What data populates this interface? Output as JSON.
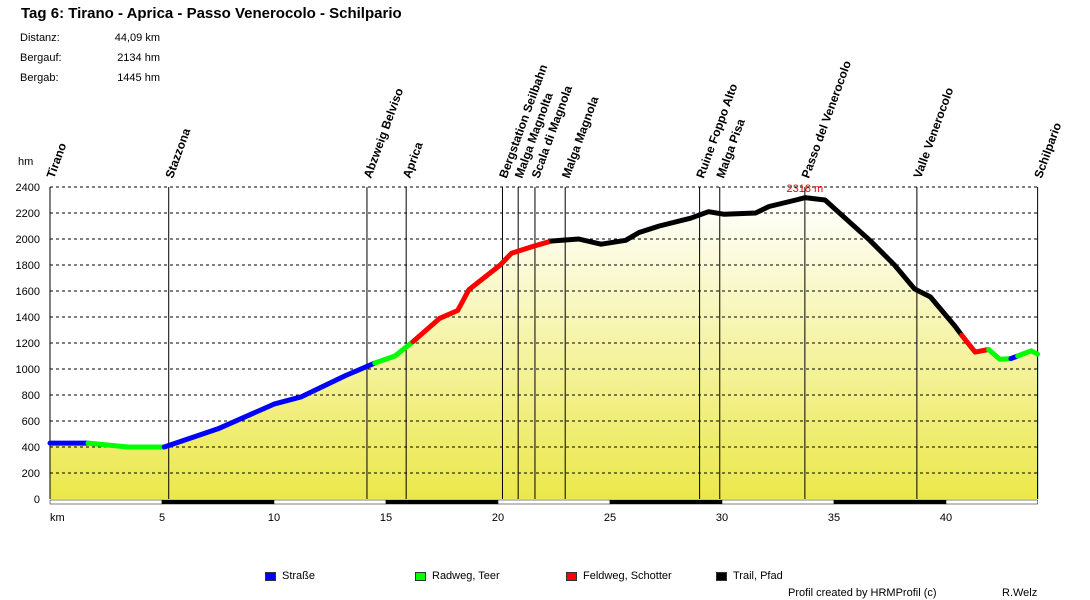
{
  "title": "Tag 6: Tirano - Aprica - Passo Venerocolo - Schilpario",
  "stats": [
    {
      "label": "Distanz:",
      "value": "44,09 km"
    },
    {
      "label": "Bergauf:",
      "value": "2134 hm"
    },
    {
      "label": "Bergab:",
      "value": "1445 hm"
    }
  ],
  "legend": [
    {
      "label": "Straße",
      "color": "#0000ff"
    },
    {
      "label": "Radweg, Teer",
      "color": "#00ff00"
    },
    {
      "label": "Feldweg, Schotter",
      "color": "#ff0000"
    },
    {
      "label": "Trail, Pfad",
      "color": "#000000"
    }
  ],
  "footer": {
    "credit": "Profil created by HRMProfil (c)",
    "author": "R.Welz"
  },
  "chart_data": {
    "type": "area",
    "xlabel": "km",
    "ylabel": "hm",
    "xlim": [
      0,
      44.09
    ],
    "ylim": [
      0,
      2400
    ],
    "xticks": [
      5,
      10,
      15,
      20,
      25,
      30,
      35,
      40
    ],
    "yticks": [
      0,
      200,
      400,
      600,
      800,
      1000,
      1200,
      1400,
      1600,
      1800,
      2000,
      2200,
      2400
    ],
    "grid": "horizontal dashed",
    "fill_gradient": [
      "#ebe84a",
      "#ffffff"
    ],
    "max_label": "2318 m",
    "max_point": {
      "km": 33.7,
      "elevation": 2318
    },
    "segments": [
      {
        "surface": "Straße",
        "color": "#0000ff",
        "points": [
          [
            0,
            430
          ],
          [
            1.7,
            430
          ]
        ]
      },
      {
        "surface": "Radweg, Teer",
        "color": "#00ff00",
        "points": [
          [
            1.7,
            430
          ],
          [
            3.5,
            400
          ],
          [
            5.1,
            400
          ]
        ]
      },
      {
        "surface": "Straße",
        "color": "#0000ff",
        "points": [
          [
            5.1,
            400
          ],
          [
            7.5,
            540
          ],
          [
            10,
            730
          ],
          [
            11.2,
            785
          ],
          [
            13.2,
            950
          ],
          [
            14.5,
            1046
          ]
        ]
      },
      {
        "surface": "Radweg, Teer",
        "color": "#00ff00",
        "points": [
          [
            14.5,
            1046
          ],
          [
            15.4,
            1100
          ],
          [
            16.2,
            1210
          ]
        ]
      },
      {
        "surface": "Feldweg, Schotter",
        "color": "#ff0000",
        "points": [
          [
            16.2,
            1210
          ],
          [
            17.4,
            1390
          ],
          [
            18.2,
            1450
          ],
          [
            18.7,
            1610
          ],
          [
            20.1,
            1800
          ],
          [
            20.6,
            1890
          ],
          [
            21.6,
            1945
          ],
          [
            22.4,
            1985
          ]
        ]
      },
      {
        "surface": "Trail, Pfad",
        "color": "#000000",
        "points": [
          [
            22.4,
            1985
          ],
          [
            23.6,
            2000
          ],
          [
            24.6,
            1960
          ],
          [
            25.7,
            1990
          ],
          [
            26.3,
            2050
          ],
          [
            27.2,
            2100
          ],
          [
            28.6,
            2160
          ],
          [
            29.4,
            2210
          ],
          [
            30.1,
            2190
          ],
          [
            31.5,
            2200
          ],
          [
            32.1,
            2250
          ],
          [
            33.3,
            2300
          ],
          [
            33.7,
            2318
          ],
          [
            34.6,
            2300
          ],
          [
            35.5,
            2160
          ],
          [
            36.6,
            1990
          ],
          [
            37.7,
            1800
          ],
          [
            38.6,
            1615
          ],
          [
            39.3,
            1555
          ],
          [
            40.4,
            1330
          ],
          [
            40.7,
            1260
          ]
        ]
      },
      {
        "surface": "Feldweg, Schotter",
        "color": "#ff0000",
        "points": [
          [
            40.7,
            1260
          ],
          [
            41.3,
            1130
          ],
          [
            41.9,
            1150
          ]
        ]
      },
      {
        "surface": "Radweg, Teer",
        "color": "#00ff00",
        "points": [
          [
            41.9,
            1150
          ],
          [
            42.4,
            1075
          ],
          [
            42.9,
            1080
          ]
        ]
      },
      {
        "surface": "Straße",
        "color": "#0000ff",
        "points": [
          [
            42.9,
            1080
          ],
          [
            43.2,
            1100
          ]
        ]
      },
      {
        "surface": "Radweg, Teer",
        "color": "#00ff00",
        "points": [
          [
            43.2,
            1100
          ],
          [
            43.8,
            1140
          ],
          [
            44.09,
            1115
          ]
        ]
      }
    ],
    "waypoints": [
      {
        "name": "Tirano",
        "km": 0
      },
      {
        "name": "Stazzona",
        "km": 5.3
      },
      {
        "name": "Abzweig Belviso",
        "km": 14.15
      },
      {
        "name": "Aprica",
        "km": 15.9
      },
      {
        "name": "Bergstation Seilbahn",
        "km": 20.2
      },
      {
        "name": "Malga Magnolta",
        "km": 20.9
      },
      {
        "name": "Scala di Magnola",
        "km": 21.65
      },
      {
        "name": "Malga Magnola",
        "km": 23.0
      },
      {
        "name": "Ruine Foppo Alto",
        "km": 29.0
      },
      {
        "name": "Malga Pisa",
        "km": 29.9
      },
      {
        "name": "Passo del Venerocolo",
        "km": 33.7
      },
      {
        "name": "Valle Venerocolo",
        "km": 38.7
      },
      {
        "name": "Schilpario",
        "km": 44.09
      }
    ]
  }
}
